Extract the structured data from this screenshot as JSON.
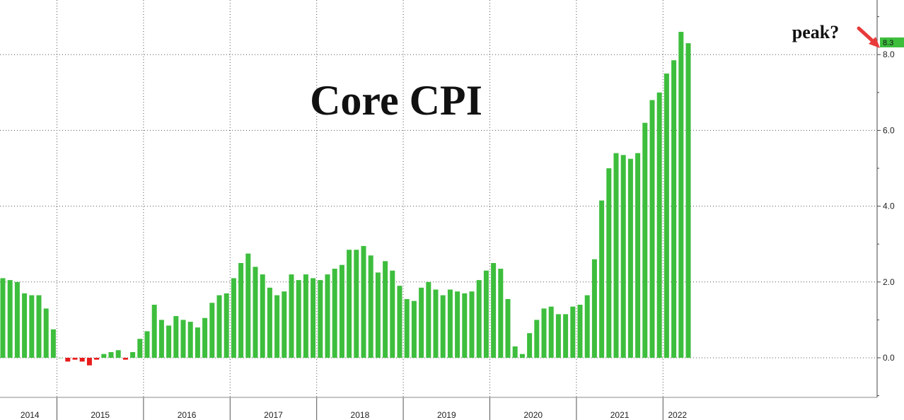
{
  "chart_data": {
    "type": "bar",
    "title": "Core CPI",
    "annotation": "peak?",
    "last_value_label": "8.3",
    "ylim": [
      -1.2,
      11.7
    ],
    "yticks": [
      "0.0",
      "2.0",
      "4.0",
      "6.0",
      "8.0"
    ],
    "ytick_values": [
      0,
      2,
      4,
      6,
      8
    ],
    "grid": true,
    "yaxis_position": "right",
    "years": [
      "2014",
      "2015",
      "2016",
      "2017",
      "2018",
      "2019",
      "2020",
      "2021",
      "2022"
    ],
    "start": "2014-01",
    "colors": {
      "positive": "#3dbe3d",
      "negative": "#e81c1c",
      "highlight": "#3dbe3d",
      "arrow": "#e83a3a"
    },
    "values": [
      2.1,
      2.05,
      2.0,
      1.7,
      1.65,
      1.65,
      1.3,
      0.75,
      0.0,
      -0.1,
      -0.05,
      -0.1,
      -0.2,
      -0.05,
      0.1,
      0.15,
      0.2,
      -0.05,
      0.15,
      0.5,
      0.7,
      1.4,
      1.0,
      0.85,
      1.1,
      1.0,
      0.95,
      0.8,
      1.05,
      1.45,
      1.65,
      1.7,
      2.1,
      2.5,
      2.75,
      2.4,
      2.2,
      1.85,
      1.65,
      1.75,
      2.2,
      2.05,
      2.2,
      2.1,
      2.05,
      2.2,
      2.35,
      2.45,
      2.85,
      2.85,
      2.95,
      2.7,
      2.25,
      2.55,
      2.3,
      1.9,
      1.55,
      1.5,
      1.85,
      2.0,
      1.8,
      1.65,
      1.8,
      1.75,
      1.7,
      1.75,
      2.05,
      2.3,
      2.5,
      2.35,
      1.55,
      0.3,
      0.1,
      0.65,
      1.0,
      1.3,
      1.35,
      1.15,
      1.15,
      1.35,
      1.4,
      1.65,
      2.6,
      4.15,
      5.0,
      5.4,
      5.35,
      5.25,
      5.4,
      6.2,
      6.8,
      7.0,
      7.5,
      7.85,
      8.6,
      8.3
    ]
  }
}
